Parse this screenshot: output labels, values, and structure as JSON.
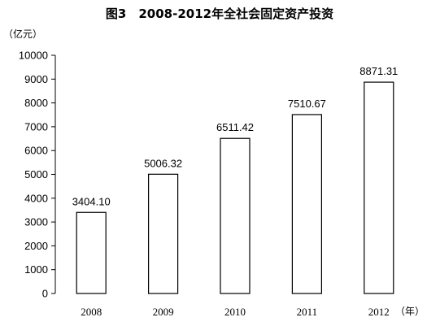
{
  "chart_data": {
    "type": "bar",
    "title": "图3　2008-2012年全社会固定资产投资",
    "ylabel": "（亿元）",
    "xlabel": "（年）",
    "categories": [
      "2008",
      "2009",
      "2010",
      "2011",
      "2012"
    ],
    "values": [
      3404.1,
      5006.32,
      6511.42,
      7510.67,
      8871.31
    ],
    "data_labels": [
      "3404.10",
      "5006.32",
      "6511.42",
      "7510.67",
      "8871.31"
    ],
    "ylim": [
      0,
      10000
    ],
    "yticks": [
      0,
      1000,
      2000,
      3000,
      4000,
      5000,
      6000,
      7000,
      8000,
      9000,
      10000
    ],
    "grid": false,
    "legend": "none"
  }
}
